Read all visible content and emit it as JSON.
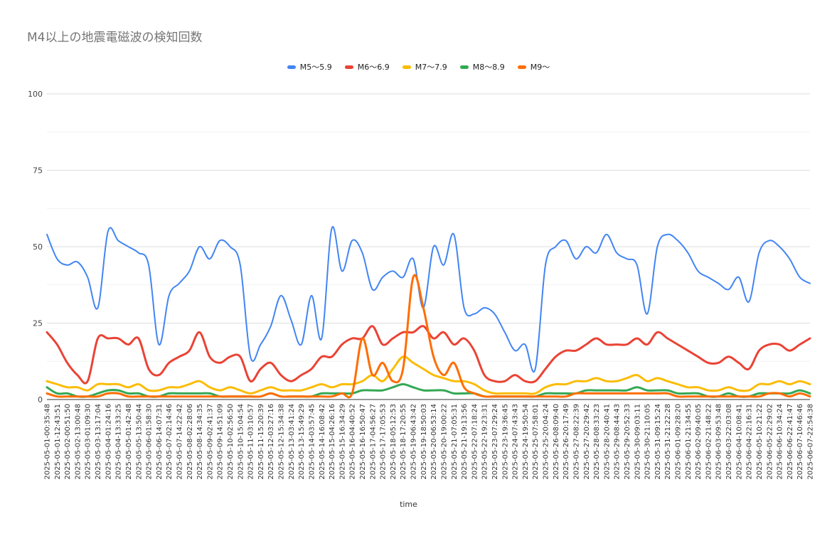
{
  "chart_data": {
    "type": "line",
    "title": "M4以上の地震電磁波の検知回数",
    "xlabel": "time",
    "ylabel": "",
    "ylim": [
      0,
      100
    ],
    "yticks": [
      0,
      25,
      50,
      75,
      100
    ],
    "legend_position": "top-center",
    "grid": true,
    "categories": [
      "2025-05-01-00:35:48",
      "2025-05-01-12:43:51",
      "2025-05-02-00:51:50",
      "2025-05-02-13:00:48",
      "2025-05-03-01:09:30",
      "2025-05-03-13:17:04",
      "2025-05-04-01:24:16",
      "2025-05-04-13:33:25",
      "2025-05-05-01:42:48",
      "2025-05-05-13:50:44",
      "2025-05-06-01:58:30",
      "2025-05-06-14:07:31",
      "2025-05-07-02:14:46",
      "2025-05-07-14:22:42",
      "2025-05-08-02:28:06",
      "2025-05-08-14:34:35",
      "2025-05-09-02:41:37",
      "2025-05-09-14:51:09",
      "2025-05-10-02:56:50",
      "2025-05-10-15:04:54",
      "2025-05-11-03:10:57",
      "2025-05-11-15:20:39",
      "2025-05-12-03:27:16",
      "2025-05-12-15:34:38",
      "2025-05-13-03:41:24",
      "2025-05-13-15:49:29",
      "2025-05-14-03:57:45",
      "2025-05-14-16:08:42",
      "2025-05-15-04:26:16",
      "2025-05-15-16:34:29",
      "2025-05-16-04:40:52",
      "2025-05-16-16:50:47",
      "2025-05-17-04:56:27",
      "2025-05-17-17:05:53",
      "2025-05-18-05:12:53",
      "2025-05-18-17:20:55",
      "2025-05-19-06:43:42",
      "2025-05-19-18:50:03",
      "2025-05-20-06:53:14",
      "2025-05-20-19:00:22",
      "2025-05-21-07:05:31",
      "2025-05-21-19:13:56",
      "2025-05-22-07:18:24",
      "2025-05-22-19:23:31",
      "2025-05-23-07:29:24",
      "2025-05-23-19:36:45",
      "2025-05-24-07:43:43",
      "2025-05-24-19:50:54",
      "2025-05-25-07:58:01",
      "2025-05-25-20:04:24",
      "2025-05-26-08:09:40",
      "2025-05-26-20:17:49",
      "2025-05-27-08:22:39",
      "2025-05-27-20:29:42",
      "2025-05-28-08:33:23",
      "2025-05-28-20:40:41",
      "2025-05-29-08:44:43",
      "2025-05-29-20:52:33",
      "2025-05-30-09:03:11",
      "2025-05-30-21:10:05",
      "2025-05-31-09:15:24",
      "2025-05-31-21:22:28",
      "2025-06-01-09:28:20",
      "2025-06-01-21:34:55",
      "2025-06-02-09:40:05",
      "2025-06-02-21:48:22",
      "2025-06-03-09:53:48",
      "2025-06-03-22:03:08",
      "2025-06-04-10:08:41",
      "2025-06-04-22:16:31",
      "2025-06-05-10:21:22",
      "2025-06-05-22:29:02",
      "2025-06-06-10:34:24",
      "2025-06-06-22:41:47",
      "2025-06-07-10:46:46",
      "2025-06-07-22:54:38"
    ],
    "series": [
      {
        "name": "M5〜5.9",
        "color": "#4285f4",
        "values": [
          54,
          46,
          44,
          45,
          40,
          30,
          55,
          52,
          50,
          48,
          44,
          18,
          34,
          38,
          42,
          50,
          46,
          52,
          50,
          44,
          14,
          18,
          24,
          34,
          26,
          18,
          34,
          20,
          56,
          42,
          52,
          48,
          36,
          40,
          42,
          40,
          46,
          30,
          50,
          44,
          54,
          30,
          28,
          30,
          28,
          22,
          16,
          18,
          10,
          44,
          50,
          52,
          46,
          50,
          48,
          54,
          48,
          46,
          44,
          28,
          50,
          54,
          52,
          48,
          42,
          40,
          38,
          36,
          40,
          32,
          48,
          52,
          50,
          46,
          40,
          38
        ]
      },
      {
        "name": "M6〜6.9",
        "color": "#ea4335",
        "values": [
          22,
          18,
          12,
          8,
          6,
          20,
          20,
          20,
          18,
          20,
          10,
          8,
          12,
          14,
          16,
          22,
          14,
          12,
          14,
          14,
          6,
          10,
          12,
          8,
          6,
          8,
          10,
          14,
          14,
          18,
          20,
          20,
          24,
          18,
          20,
          22,
          22,
          24,
          20,
          22,
          18,
          20,
          16,
          8,
          6,
          6,
          8,
          6,
          6,
          10,
          14,
          16,
          16,
          18,
          20,
          18,
          18,
          18,
          20,
          18,
          22,
          20,
          18,
          16,
          14,
          12,
          12,
          14,
          12,
          10,
          16,
          18,
          18,
          16,
          18,
          20
        ]
      },
      {
        "name": "M7〜7.9",
        "color": "#fbbc04",
        "values": [
          6,
          5,
          4,
          4,
          3,
          5,
          5,
          5,
          4,
          5,
          3,
          3,
          4,
          4,
          5,
          6,
          4,
          3,
          4,
          3,
          2,
          3,
          4,
          3,
          3,
          3,
          4,
          5,
          4,
          5,
          5,
          6,
          8,
          6,
          10,
          14,
          12,
          10,
          8,
          7,
          6,
          6,
          5,
          3,
          2,
          2,
          2,
          2,
          2,
          4,
          5,
          5,
          6,
          6,
          7,
          6,
          6,
          7,
          8,
          6,
          7,
          6,
          5,
          4,
          4,
          3,
          3,
          4,
          3,
          3,
          5,
          5,
          6,
          5,
          6,
          5
        ]
      },
      {
        "name": "M8〜8.9",
        "color": "#34a853",
        "values": [
          4,
          2,
          2,
          1,
          1,
          2,
          3,
          3,
          2,
          2,
          1,
          1,
          2,
          2,
          2,
          2,
          2,
          1,
          1,
          1,
          1,
          1,
          2,
          1,
          1,
          1,
          1,
          2,
          2,
          2,
          2,
          3,
          3,
          3,
          4,
          5,
          4,
          3,
          3,
          3,
          2,
          2,
          2,
          1,
          1,
          1,
          1,
          1,
          1,
          2,
          2,
          2,
          2,
          3,
          3,
          3,
          3,
          3,
          4,
          3,
          3,
          3,
          2,
          2,
          2,
          1,
          1,
          2,
          1,
          1,
          2,
          2,
          2,
          2,
          3,
          2
        ]
      },
      {
        "name": "M9〜",
        "color": "#ff6d01",
        "values": [
          2,
          1,
          1,
          1,
          1,
          1,
          2,
          2,
          1,
          1,
          1,
          1,
          1,
          1,
          1,
          1,
          1,
          1,
          1,
          1,
          1,
          1,
          2,
          1,
          1,
          1,
          1,
          1,
          1,
          2,
          2,
          20,
          8,
          12,
          6,
          10,
          40,
          30,
          14,
          8,
          12,
          4,
          2,
          1,
          1,
          1,
          1,
          1,
          1,
          1,
          1,
          1,
          2,
          2,
          2,
          2,
          2,
          2,
          2,
          2,
          2,
          2,
          1,
          1,
          1,
          1,
          1,
          1,
          1,
          1,
          1,
          2,
          2,
          1,
          2,
          1
        ]
      }
    ]
  }
}
